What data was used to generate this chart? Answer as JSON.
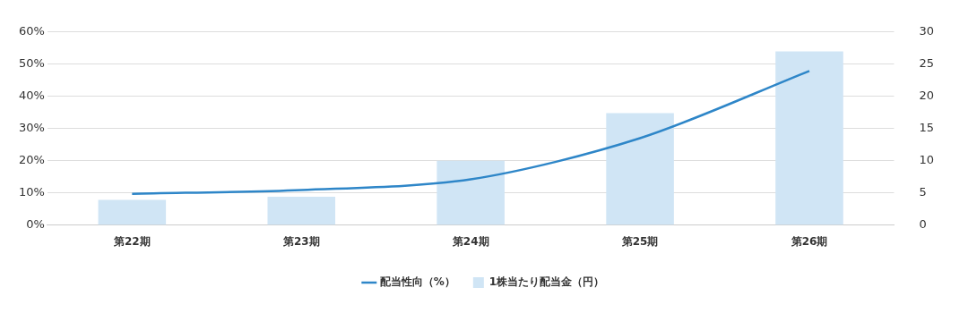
{
  "chart_data": {
    "type": "bar",
    "categories": [
      "第22期",
      "第23期",
      "第24期",
      "第25期",
      "第26期"
    ],
    "series": [
      {
        "name": "配当性向（%）",
        "type": "line",
        "color": "#2e86c8",
        "values": [
          9.7,
          10.9,
          14.2,
          27,
          47.9
        ]
      },
      {
        "name": "1株当たり配当金（円）",
        "axis": "y2",
        "color": "#d0e5f5",
        "values": [
          3.9,
          4.4,
          10,
          17.4,
          27
        ]
      }
    ],
    "ylim": [
      0,
      60
    ],
    "yticks": [
      {
        "value": 0,
        "label": "0%"
      },
      {
        "value": 10,
        "label": "10%"
      },
      {
        "value": 20,
        "label": "20%"
      },
      {
        "value": 30,
        "label": "30%"
      },
      {
        "value": 40,
        "label": "40%"
      },
      {
        "value": 50,
        "label": "50%"
      },
      {
        "value": 60,
        "label": "60%"
      }
    ],
    "y2lim": [
      0,
      30
    ],
    "y2ticks": [
      0,
      5,
      10,
      15,
      20,
      25,
      30
    ],
    "grid": "y",
    "legend": "bottom",
    "marker": "none"
  }
}
